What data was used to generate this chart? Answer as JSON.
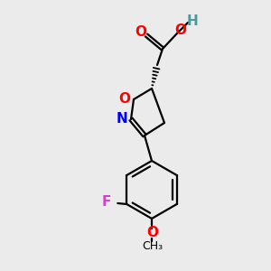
{
  "background_color": "#ebebeb",
  "atom_colors": {
    "C": "#000000",
    "H": "#4a9a9a",
    "O": "#ff0000",
    "N": "#0000ff",
    "F": "#cc44cc"
  },
  "figsize": [
    3.0,
    3.0
  ],
  "dpi": 100
}
